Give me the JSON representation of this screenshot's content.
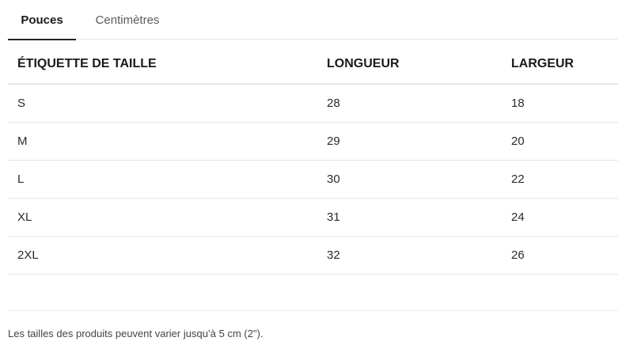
{
  "tabs": [
    {
      "label": "Pouces",
      "active": true
    },
    {
      "label": "Centimètres",
      "active": false
    }
  ],
  "table": {
    "headers": [
      "ÉTIQUETTE DE TAILLE",
      "LONGUEUR",
      "LARGEUR"
    ],
    "rows": [
      [
        "S",
        "28",
        "18"
      ],
      [
        "M",
        "29",
        "20"
      ],
      [
        "L",
        "30",
        "22"
      ],
      [
        "XL",
        "31",
        "24"
      ],
      [
        "2XL",
        "32",
        "26"
      ]
    ]
  },
  "note": "Les tailles des produits peuvent varier jusqu’à 5 cm (2\")."
}
